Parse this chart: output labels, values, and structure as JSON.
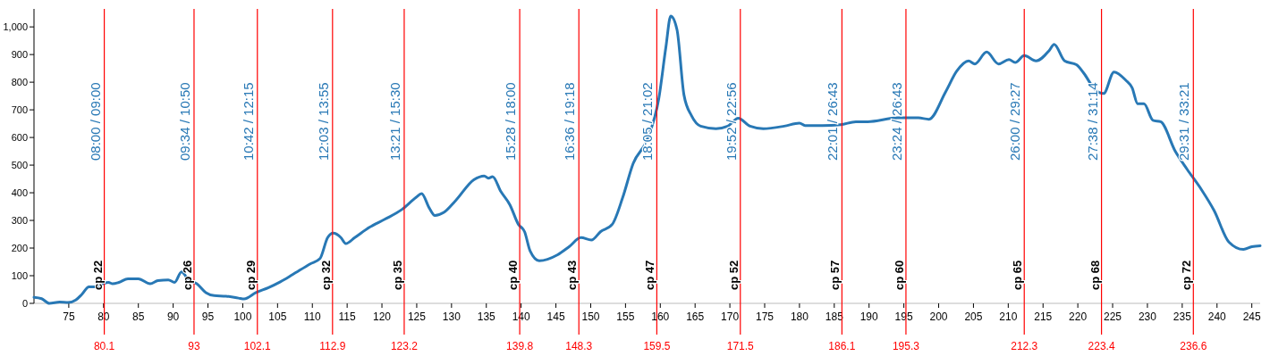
{
  "chart_data": {
    "type": "line",
    "xlim": [
      70,
      246.2
    ],
    "ylim": [
      0,
      1065
    ],
    "xticks": [
      75,
      80,
      85,
      90,
      95,
      100,
      105,
      110,
      115,
      120,
      125,
      130,
      135,
      140,
      145,
      150,
      155,
      160,
      165,
      170,
      175,
      180,
      185,
      190,
      195,
      200,
      205,
      210,
      215,
      220,
      225,
      230,
      235,
      240,
      245
    ],
    "yticks": [
      0,
      100,
      200,
      300,
      400,
      500,
      600,
      700,
      800,
      900,
      {
        "value": 1000,
        "label": "1,000"
      }
    ],
    "grid": false,
    "series": [
      {
        "color": "#2878b5",
        "x": [
          70.0,
          71.1,
          72.2,
          73.7,
          74.9,
          76.0,
          76.9,
          77.9,
          78.8,
          79.9,
          80.7,
          81.3,
          82.2,
          83.5,
          85.0,
          86.7,
          87.8,
          89.3,
          90.2,
          91.2,
          92.3,
          93.4,
          94.7,
          95.9,
          97.6,
          99.4,
          100.2,
          101.9,
          103.7,
          105.4,
          107.1,
          109.7,
          111.1,
          112.2,
          113.0,
          114.1,
          114.8,
          116.1,
          118.2,
          120.4,
          122.9,
          124.9,
          125.7,
          126.8,
          127.6,
          128.9,
          130.6,
          133.2,
          134.7,
          135.3,
          135.9,
          137.1,
          138.4,
          139.6,
          140.5,
          141.3,
          142.6,
          145.2,
          146.9,
          148.6,
          150.1,
          151.4,
          153.1,
          154.6,
          156.1,
          158.1,
          159.8,
          160.8,
          161.5,
          162.4,
          163.4,
          164.5,
          165.8,
          168.0,
          169.7,
          171.2,
          172.9,
          174.8,
          177.8,
          180.0,
          180.8,
          183.3,
          185.9,
          188.1,
          189.8,
          194.1,
          197.1,
          198.6,
          201.0,
          202.6,
          204.3,
          205.2,
          206.9,
          208.6,
          210.1,
          211.0,
          212.3,
          214.0,
          215.9,
          216.6,
          218.1,
          219.8,
          220.9,
          222.4,
          223.7,
          225.2,
          226.9,
          227.8,
          228.6,
          229.5,
          230.8,
          231.9,
          234.0,
          235.7,
          237.8,
          239.6,
          241.7,
          243.8,
          245.0,
          246.2
        ],
        "values": [
          22,
          17,
          0,
          5,
          3,
          12,
          33,
          60,
          60,
          71,
          76,
          71,
          76,
          89,
          89,
          71,
          82,
          85,
          76,
          114,
          82,
          71,
          39,
          28,
          26,
          19,
          16,
          39,
          57,
          78,
          103,
          143,
          162,
          238,
          254,
          238,
          216,
          238,
          275,
          304,
          340,
          383,
          397,
          345,
          318,
          329,
          372,
          447,
          461,
          453,
          458,
          404,
          356,
          286,
          259,
          189,
          154,
          175,
          205,
          238,
          229,
          259,
          286,
          383,
          506,
          592,
          743,
          926,
          1039,
          990,
          754,
          678,
          641,
          632,
          641,
          670,
          641,
          632,
          641,
          652,
          643,
          643,
          646,
          657,
          657,
          671,
          671,
          666,
          765,
          840,
          877,
          866,
          909,
          866,
          882,
          871,
          896,
          877,
          915,
          937,
          877,
          863,
          831,
          775,
          759,
          837,
          807,
          780,
          722,
          722,
          662,
          657,
          550,
          485,
          410,
          335,
          222,
          195,
          205,
          208
        ]
      }
    ],
    "ref_lines": [
      {
        "axis": "x",
        "value": 80.1,
        "label": "80.1",
        "color": "#ff0000"
      },
      {
        "axis": "x",
        "value": 93,
        "label": "93",
        "color": "#ff0000"
      },
      {
        "axis": "x",
        "value": 102.1,
        "label": "102.1",
        "color": "#ff0000"
      },
      {
        "axis": "x",
        "value": 112.9,
        "label": "112.9",
        "color": "#ff0000"
      },
      {
        "axis": "x",
        "value": 123.2,
        "label": "123.2",
        "color": "#ff0000"
      },
      {
        "axis": "x",
        "value": 139.8,
        "label": "139.8",
        "color": "#ff0000"
      },
      {
        "axis": "x",
        "value": 148.3,
        "label": "148.3",
        "color": "#ff0000"
      },
      {
        "axis": "x",
        "value": 159.5,
        "label": "159.5",
        "color": "#ff0000"
      },
      {
        "axis": "x",
        "value": 171.5,
        "label": "171.5",
        "color": "#ff0000"
      },
      {
        "axis": "x",
        "value": 186.1,
        "label": "186.1",
        "color": "#ff0000"
      },
      {
        "axis": "x",
        "value": 195.3,
        "label": "195.3",
        "color": "#ff0000"
      },
      {
        "axis": "x",
        "value": 212.3,
        "label": "212.3",
        "color": "#ff0000"
      },
      {
        "axis": "x",
        "value": 223.4,
        "label": "223.4",
        "color": "#ff0000"
      },
      {
        "axis": "x",
        "value": 236.6,
        "label": "236.6",
        "color": "#ff0000"
      }
    ],
    "annotations": [
      {
        "text": "08:00 / 09:00",
        "x": 80.1
      },
      {
        "text": "cp 22",
        "x": 80.1
      },
      {
        "text": "09:34 / 10:50",
        "x": 93
      },
      {
        "text": "cp 26",
        "x": 93
      },
      {
        "text": "10:42 / 12:15",
        "x": 102.1
      },
      {
        "text": "cp 29",
        "x": 102.1
      },
      {
        "text": "12:03 / 13:55",
        "x": 112.9
      },
      {
        "text": "cp 32",
        "x": 112.9
      },
      {
        "text": "13:21 / 15:30",
        "x": 123.2
      },
      {
        "text": "cp 35",
        "x": 123.2
      },
      {
        "text": "15:28 / 18:00",
        "x": 139.8
      },
      {
        "text": "cp 40",
        "x": 139.8
      },
      {
        "text": "16:36 / 19:18",
        "x": 148.3
      },
      {
        "text": "cp 43",
        "x": 148.3
      },
      {
        "text": "18:05 / 21:02",
        "x": 159.5
      },
      {
        "text": "cp 47",
        "x": 159.5
      },
      {
        "text": "19:52 / 22:56",
        "x": 171.5
      },
      {
        "text": "cp 52",
        "x": 171.5
      },
      {
        "text": "22:01 / 26:43",
        "x": 186.1
      },
      {
        "text": "cp 57",
        "x": 186.1
      },
      {
        "text": "23:24 / 26:43",
        "x": 195.3
      },
      {
        "text": "cp 60",
        "x": 195.3
      },
      {
        "text": "26:00 / 29:27",
        "x": 212.3
      },
      {
        "text": "cp 65",
        "x": 212.3
      },
      {
        "text": "27:38 / 31:14",
        "x": 223.4
      },
      {
        "text": "cp 68",
        "x": 223.4
      },
      {
        "text": "29:31 / 33:21",
        "x": 236.6
      },
      {
        "text": "cp 72",
        "x": 236.6
      }
    ]
  }
}
